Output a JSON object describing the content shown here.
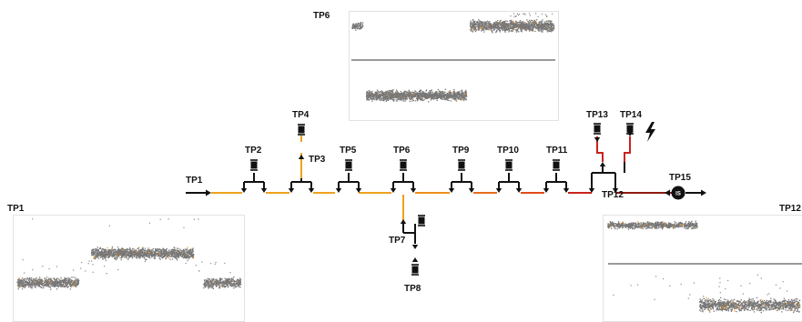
{
  "labels": {
    "tp1": "TP1",
    "tp2": "TP2",
    "tp3": "TP3",
    "tp4": "TP4",
    "tp5": "TP5",
    "tp6": "TP6",
    "tp7": "TP7",
    "tp8": "TP8",
    "tp9": "TP9",
    "tp10": "TP10",
    "tp11": "TP11",
    "tp12": "TP12",
    "tp13": "TP13",
    "tp14": "TP14",
    "tp15": "TP15",
    "panel_tp6": "TP6",
    "panel_tp1": "TP1",
    "panel_tp12": "TP12",
    "source_symbol": "IS"
  },
  "colors": {
    "wire_black": "#111111",
    "wire_orange": "#f0a11c",
    "wire_orange_dark": "#e36a18",
    "wire_red": "#c8231c",
    "wire_darkred": "#8f1a14",
    "scatter_point": "#777777",
    "scatter_accent": "#f29a2e",
    "baseline": "#333333"
  },
  "icons": {
    "fault": "lightning-icon",
    "source": "source-circle-icon",
    "sensor": "test-point-probe-icon"
  }
}
